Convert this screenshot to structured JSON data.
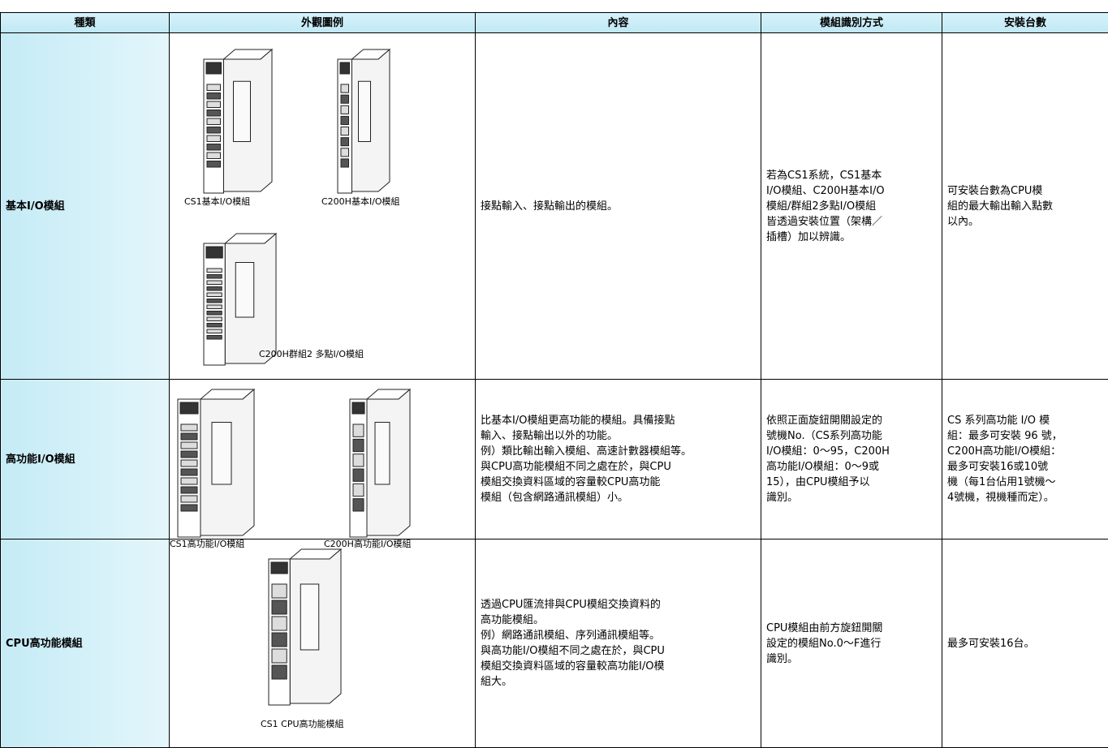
{
  "table": {
    "header": [
      "種類",
      "外觀圖例",
      "內容",
      "模組識別方式",
      "安裝台數"
    ],
    "rows": [
      {
        "category": "基本I/O模組",
        "figures": [
          {
            "caption": "CS1基本I/O模組"
          },
          {
            "caption": "C200H基本I/O模組"
          },
          {
            "caption": "C200H群組2 多點I/O模組"
          }
        ],
        "content": [
          "接點輸入、接點輸出的模組。"
        ],
        "identification": [
          "若為CS1系統，CS1基本",
          "I/O模組、C200H基本I/O",
          "模組/群組2多點I/O模組",
          "皆透過安裝位置（架構／",
          "插槽）加以辨識。"
        ],
        "count": [
          "可安裝台數為CPU模",
          "組的最大輸出輸入點數",
          "以內。"
        ]
      },
      {
        "category": "高功能I/O模組",
        "figures": [
          {
            "caption": "CS1高功能I/O模組"
          },
          {
            "caption": "C200H高功能I/O模組"
          }
        ],
        "content": [
          "比基本I/O模組更高功能的模組。具備接點",
          "輸入、接點輸出以外的功能。",
          "例）類比輸出輸入模組、高速計數器模組等。",
          "與CPU高功能模組不同之處在於，與CPU",
          "模組交換資料區域的容量較CPU高功能",
          "模組（包含網路通訊模組）小。"
        ],
        "identification": [
          "依照正面旋鈕開關設定的",
          "號機No.（CS系列高功能",
          "I/O模組：0～95，C200H",
          "高功能I/O模組：0～9或",
          "15），由CPU模組予以",
          "識別。"
        ],
        "count": [
          "CS 系列高功能 I/O 模",
          "組：最多可安裝 96 號，",
          "C200H高功能I/O模組：",
          "最多可安裝16或10號",
          "機（每1台佔用1號機～",
          "4號機，視機種而定）。"
        ]
      },
      {
        "category": "CPU高功能模組",
        "figures": [
          {
            "caption": "CS1 CPU高功能模組"
          }
        ],
        "content": [
          "透過CPU匯流排與CPU模組交換資料的",
          "高功能模組。",
          "例）網路通訊模組、序列通訊模組等。",
          "與高功能I/O模組不同之處在於，與CPU",
          "模組交換資料區域的容量較高功能I/O模",
          "組大。"
        ],
        "identification": [
          "CPU模組由前方旋鈕開關",
          "設定的模組No.0～F進行",
          "識別。"
        ],
        "count": [
          "最多可安裝16台。"
        ]
      }
    ]
  }
}
